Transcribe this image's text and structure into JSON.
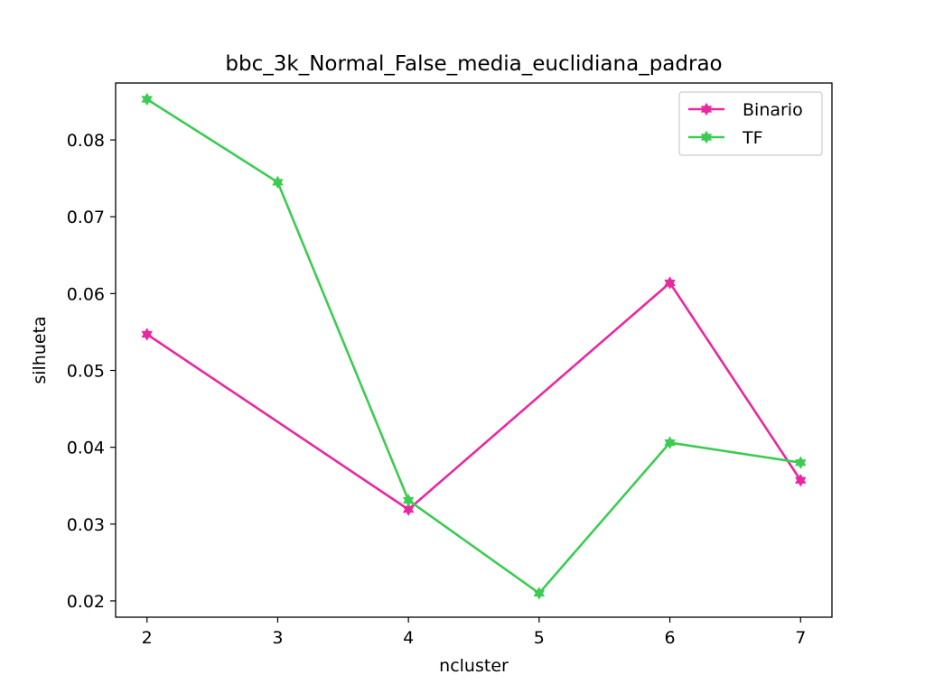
{
  "chart_data": {
    "type": "line",
    "title": "bbc_3k_Normal_False_media_euclidiana_padrao",
    "xlabel": "ncluster",
    "ylabel": "silhueta",
    "x": [
      2,
      3,
      4,
      5,
      6,
      7
    ],
    "x_ticks": [
      "2",
      "3",
      "4",
      "5",
      "6",
      "7"
    ],
    "y_ticks": [
      "0.02",
      "0.03",
      "0.04",
      "0.05",
      "0.06",
      "0.07",
      "0.08"
    ],
    "y_tick_values": [
      0.02,
      0.03,
      0.04,
      0.05,
      0.06,
      0.07,
      0.08
    ],
    "xlim": [
      1.76,
      7.24
    ],
    "ylim": [
      0.01788,
      0.08741
    ],
    "grid": false,
    "legend_position": "upper right",
    "series": [
      {
        "name": "Binario",
        "color": "#e9289f",
        "marker": "star-icon",
        "points": [
          {
            "x": 2,
            "y": 0.0547
          },
          {
            "x": 4,
            "y": 0.0319
          },
          {
            "x": 6,
            "y": 0.0614
          },
          {
            "x": 7,
            "y": 0.0357
          }
        ]
      },
      {
        "name": "TF",
        "color": "#3ccc52",
        "marker": "star-icon",
        "points": [
          {
            "x": 2,
            "y": 0.0853
          },
          {
            "x": 3,
            "y": 0.0745
          },
          {
            "x": 4,
            "y": 0.0331
          },
          {
            "x": 5,
            "y": 0.021
          },
          {
            "x": 6,
            "y": 0.0406
          },
          {
            "x": 7,
            "y": 0.038
          }
        ]
      }
    ]
  }
}
